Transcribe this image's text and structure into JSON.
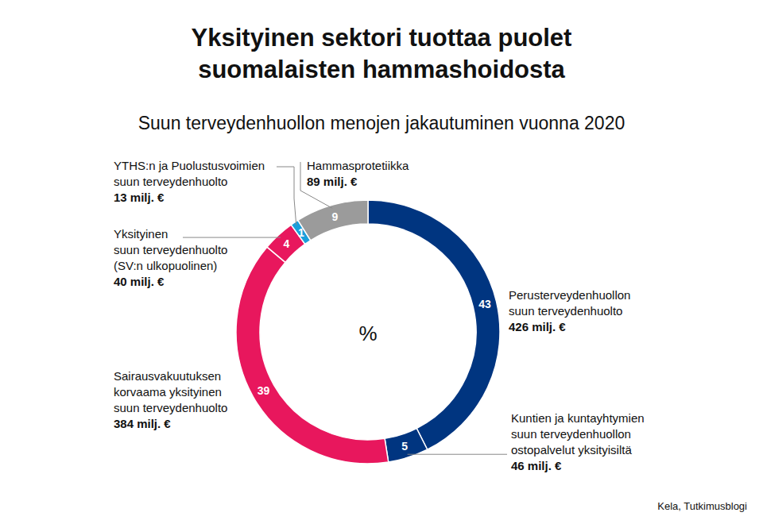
{
  "chart_data": {
    "type": "donut",
    "title": "Yksityinen sektori tuottaa puolet\nsuomalaisten hammashoidosta",
    "subtitle": "Suun terveydenhuollon menojen jakautuminen vuonna 2020",
    "center_label": "%",
    "categories": [
      "Perusterveydenhuollon\nsuun terveydenhuolto",
      "Kuntien ja kuntayhtymien\nsuun terveydenhuollon\nostopalvelut yksityisiltä",
      "Sairausvakuutuksen\nkorvaama yksityinen\nsuun terveydenhuolto",
      "Yksityinen\nsuun terveydenhuolto\n(SV:n ulkopuolinen)",
      "YTHS:n ja Puolustusvoimien\nsuun terveydenhuolto",
      "Hammasprotetiikka"
    ],
    "amount_labels": [
      "426 milj. €",
      "46 milj. €",
      "384 milj. €",
      "40 milj. €",
      "13 milj. €",
      "89 milj. €"
    ],
    "values": [
      43,
      5,
      39,
      4,
      1,
      9
    ],
    "colors": [
      "#003580",
      "#003580",
      "#e8175d",
      "#e8175d",
      "#1a9fdb",
      "#9b9b9b"
    ],
    "data_labels": true,
    "source": "Kela, Tutkimusblogi"
  }
}
